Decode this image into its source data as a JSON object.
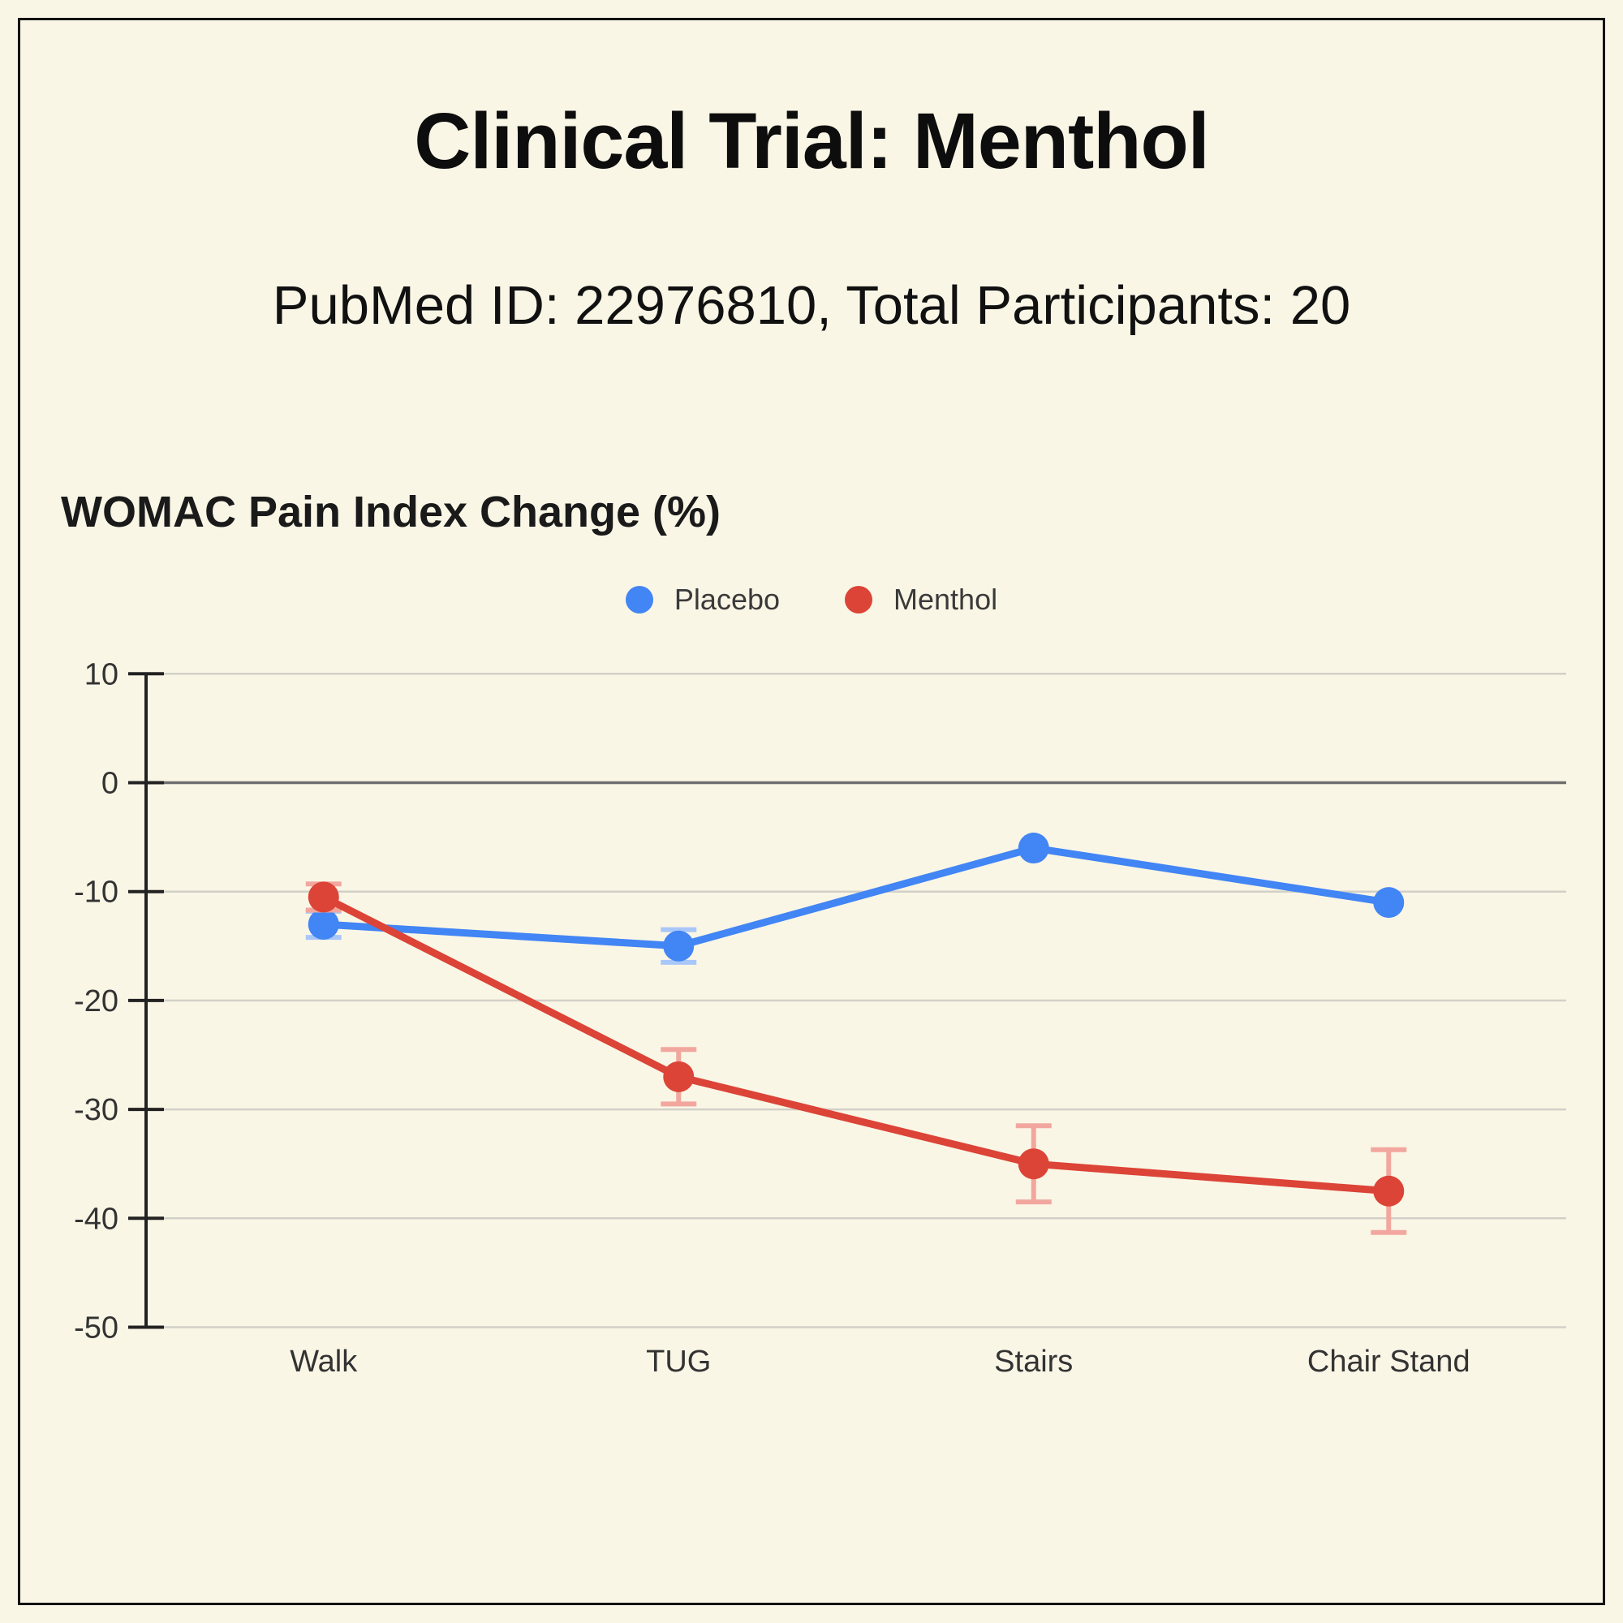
{
  "page": {
    "title": "Clinical Trial: Menthol",
    "subtitle": "PubMed ID: 22976810, Total Participants: 20"
  },
  "chart_data": {
    "type": "line",
    "title": "WOMAC Pain Index Change (%)",
    "categories": [
      "Walk",
      "TUG",
      "Stairs",
      "Chair Stand"
    ],
    "series": [
      {
        "name": "Placebo",
        "color": "#4285F4",
        "error_color": "#A9C7F9",
        "values": [
          -13,
          -15,
          -6,
          -11
        ],
        "errors": [
          1.2,
          1.5,
          0,
          0
        ]
      },
      {
        "name": "Menthol",
        "color": "#DB4437",
        "error_color": "#F2A79E",
        "values": [
          -10.5,
          -27,
          -35,
          -37.5
        ],
        "errors": [
          1.2,
          2.5,
          3.5,
          3.8
        ]
      }
    ],
    "xlabel": "",
    "ylabel": "",
    "ylim": [
      -50,
      10
    ],
    "yticks": [
      10,
      0,
      -10,
      -20,
      -30,
      -40,
      -50
    ],
    "grid": true,
    "legend_position": "top-center",
    "colors": {
      "background": "#FAF6E6",
      "gridline": "#D2D0C8",
      "zero_line": "#6E6E6E",
      "axis": "#222222",
      "tick_label": "#333333",
      "category_label": "#333333"
    }
  }
}
